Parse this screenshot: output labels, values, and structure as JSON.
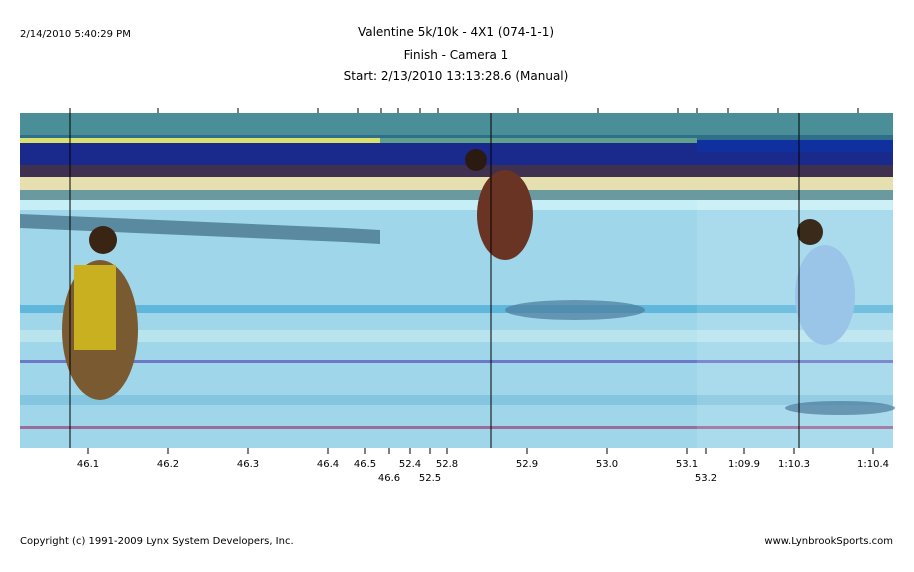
{
  "header": {
    "timestamp": "2/14/2010 5:40:29 PM",
    "title": "Valentine 5k/10k - 4X1 (074-1-1)",
    "subtitle": "Finish - Camera 1",
    "start": "Start: 2/13/2010 13:13:28.6 (Manual)"
  },
  "timeline": {
    "ticks": [
      "46.1",
      "46.2",
      "46.3",
      "46.4",
      "46.5",
      "46.6",
      "52.4",
      "52.5",
      "52.8",
      "52.9",
      "53.0",
      "53.1",
      "53.2",
      "1:09.9",
      "1:10.3",
      "1:10.4"
    ]
  },
  "footer": {
    "copyright": "Copyright (c) 1991-2009 Lynx System Developers, Inc.",
    "website": "www.LynbrookSports.com"
  }
}
